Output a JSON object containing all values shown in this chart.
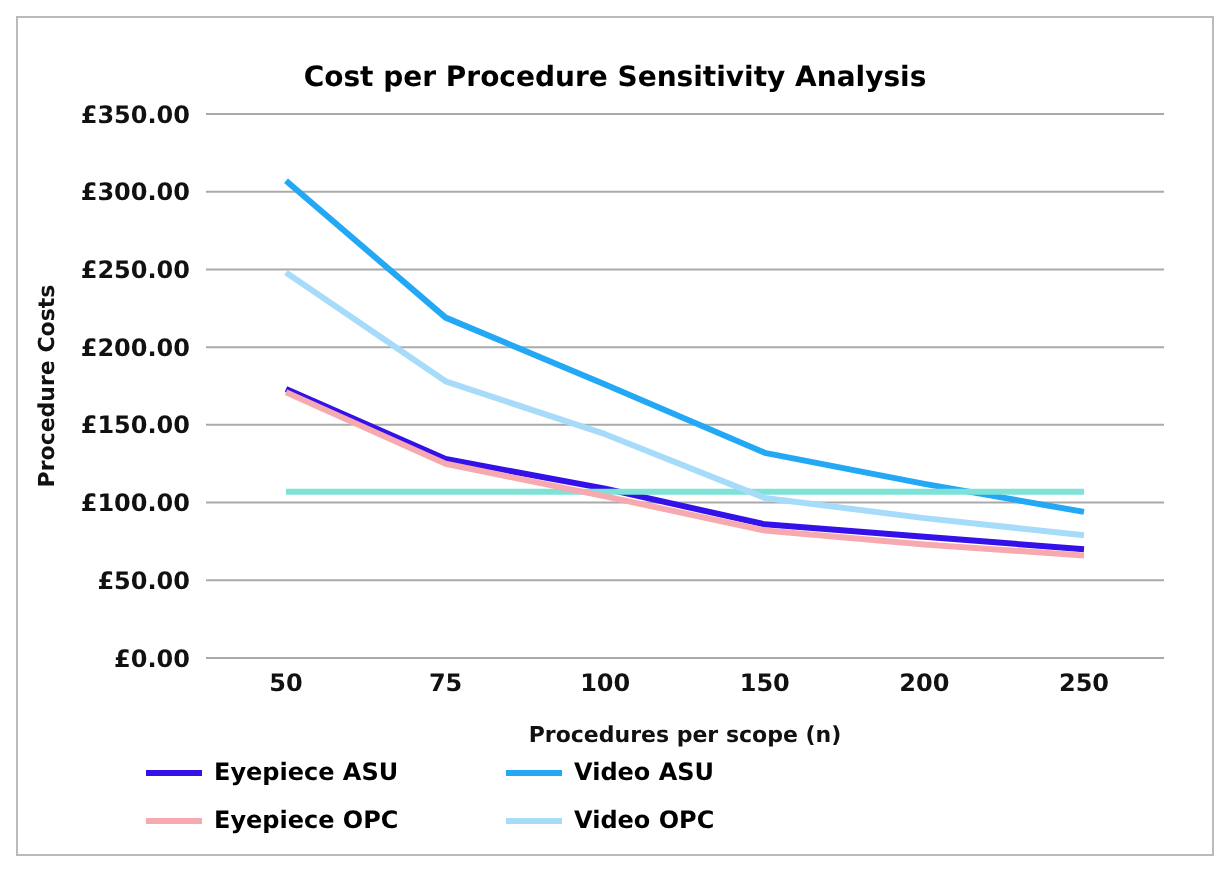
{
  "chart_data": {
    "type": "line",
    "title": "Cost per Procedure Sensitivity Analysis",
    "xlabel": "Procedures per scope (n)",
    "ylabel": "Procedure Costs",
    "categories": [
      "50",
      "75",
      "100",
      "150",
      "200",
      "250"
    ],
    "series": [
      {
        "name": "Eyepiece ASU",
        "color": "#3311e8",
        "values": [
          173,
          128,
          109,
          86,
          78,
          70
        ]
      },
      {
        "name": "Video ASU",
        "color": "#22a8f5",
        "values": [
          307,
          219,
          176,
          132,
          112,
          94
        ]
      },
      {
        "color": "#7ee3d6",
        "values": [
          107,
          107,
          107,
          107,
          107,
          107
        ]
      },
      {
        "name": "Eyepiece OPC",
        "color": "#f7a9b0",
        "values": [
          171,
          125,
          104,
          82,
          73,
          66
        ]
      },
      {
        "name": "Video OPC",
        "color": "#a6dcfa",
        "values": [
          248,
          178,
          144,
          103,
          90,
          79
        ]
      }
    ],
    "ylim": [
      0,
      350
    ],
    "yticks": [
      {
        "value": 0,
        "label": "£0.00"
      },
      {
        "value": 50,
        "label": "£50.00"
      },
      {
        "value": 100,
        "label": "£100.00"
      },
      {
        "value": 150,
        "label": "£150.00"
      },
      {
        "value": 200,
        "label": "£200.00"
      },
      {
        "value": 250,
        "label": "£250.00"
      },
      {
        "value": 300,
        "label": "£300.00"
      },
      {
        "value": 350,
        "label": "£350.00"
      }
    ],
    "grid": "y",
    "legend": "bottom",
    "marker": "none",
    "line_style": "solid"
  }
}
